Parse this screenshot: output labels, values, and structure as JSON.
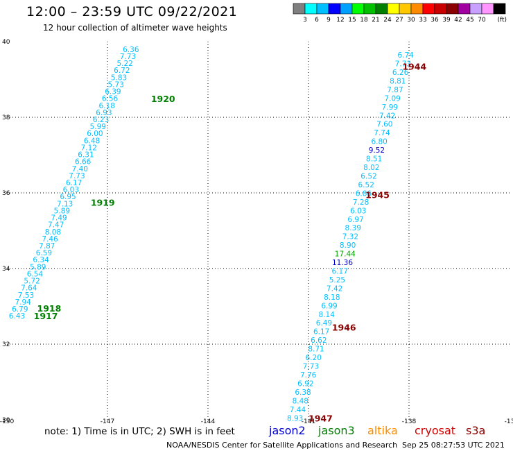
{
  "header": {
    "title": "12:00 – 23:59 UTC 09/22/2021",
    "subtitle": "12 hour collection of altimeter wave heights"
  },
  "colorbar": {
    "colors": [
      "#7f7f7f",
      "#00ffff",
      "#00bfff",
      "#0000ff",
      "#00a0ff",
      "#00ff00",
      "#00c000",
      "#008000",
      "#ffff00",
      "#ffc800",
      "#ff8c00",
      "#ff0000",
      "#c80000",
      "#8b0000",
      "#a000a0",
      "#c8a0ff",
      "#ff96ff",
      "#000000"
    ],
    "ticks": [
      "3",
      "6",
      "9",
      "12",
      "15",
      "18",
      "21",
      "24",
      "27",
      "30",
      "33",
      "36",
      "39",
      "42",
      "45",
      "70",
      "(ft)"
    ]
  },
  "footer": {
    "note": "note:  1) Time is in UTC;  2) SWH is in feet",
    "credit": "NOAA/NESDIS Center for Satellite Applications and Research",
    "timestamp": "Sep 25 08:27:53 UTC 2021"
  },
  "legend": [
    {
      "name": "jason2",
      "color": "#0000cc"
    },
    {
      "name": "jason3",
      "color": "#008000"
    },
    {
      "name": "altika",
      "color": "#ff8c00"
    },
    {
      "name": "cryosat",
      "color": "#cc0000"
    },
    {
      "name": "s3a",
      "color": "#8b0000"
    }
  ],
  "chart_data": {
    "type": "scatter",
    "title": "12:00 – 23:59 UTC 09/22/2021",
    "subtitle": "12 hour collection of altimeter wave heights",
    "xlim": [
      -150,
      -135
    ],
    "ylim": [
      30,
      40
    ],
    "x_ticks": [
      "-150",
      "-147",
      "-144",
      "-141",
      "-138",
      "-13"
    ],
    "y_ticks": [
      "30",
      "32",
      "34",
      "36",
      "38",
      "40"
    ],
    "grid": true,
    "tracks": [
      {
        "name": "track-west",
        "color": "#00bfff",
        "x_start": -149.7,
        "x_end": -146.3,
        "y_start": 32.75,
        "y_end": 39.8,
        "values": [
          "6.43",
          "6.79",
          "7.94",
          "7.53",
          "7.64",
          "5.72",
          "6.54",
          "5.89",
          "6.34",
          "6.59",
          "7.87",
          "7.46",
          "8.08",
          "7.47",
          "7.49",
          "5.89",
          "7.13",
          "6.95",
          "6.03",
          "6.17",
          "7.73",
          "7.40",
          "6.66",
          "6.31",
          "7.12",
          "6.48",
          "6.00",
          "5.99",
          "6.23",
          "6.93",
          "6.18",
          "6.56",
          "6.39",
          "5.73",
          "5.83",
          "6.72",
          "5.22",
          "7.73",
          "6.36"
        ],
        "special": {}
      },
      {
        "name": "track-east",
        "color": "#00bfff",
        "x_start": -141.4,
        "x_end": -138.1,
        "y_start": 30.05,
        "y_end": 39.65,
        "values": [
          "8.93",
          "7.44",
          "8.48",
          "6.38",
          "6.92",
          "7.76",
          "7.73",
          "6.20",
          "8.71",
          "6.62",
          "6.17",
          "6.49",
          "8.14",
          "6.99",
          "8.18",
          "7.42",
          "5.25",
          "6.17",
          "11.36",
          "17.44",
          "8.90",
          "7.32",
          "8.39",
          "6.97",
          "6.03",
          "7.28",
          "6.86",
          "6.52",
          "6.52",
          "8.02",
          "8.51",
          "9.52",
          "6.80",
          "7.74",
          "7.60",
          "7.42",
          "7.99",
          "7.09",
          "7.87",
          "8.81",
          "6.26",
          "7.73",
          "6.74"
        ],
        "special": {
          "11.36": "#0000cc",
          "17.44": "#00a000",
          "9.52": "#0000cc"
        }
      }
    ],
    "time_labels": [
      {
        "text": "1917",
        "x": -149.2,
        "y": 32.75,
        "color": "#008000"
      },
      {
        "text": "1918",
        "x": -149.1,
        "y": 32.95,
        "color": "#008000"
      },
      {
        "text": "1919",
        "x": -147.5,
        "y": 35.75,
        "color": "#008000"
      },
      {
        "text": "1920",
        "x": -145.7,
        "y": 38.5,
        "color": "#008000"
      },
      {
        "text": "1944",
        "x": -138.2,
        "y": 39.35,
        "color": "#8b0000"
      },
      {
        "text": "1945",
        "x": -139.3,
        "y": 35.95,
        "color": "#8b0000"
      },
      {
        "text": "1946",
        "x": -140.3,
        "y": 32.45,
        "color": "#8b0000"
      },
      {
        "text": "1947",
        "x": -141.0,
        "y": 30.05,
        "color": "#8b0000"
      }
    ]
  }
}
